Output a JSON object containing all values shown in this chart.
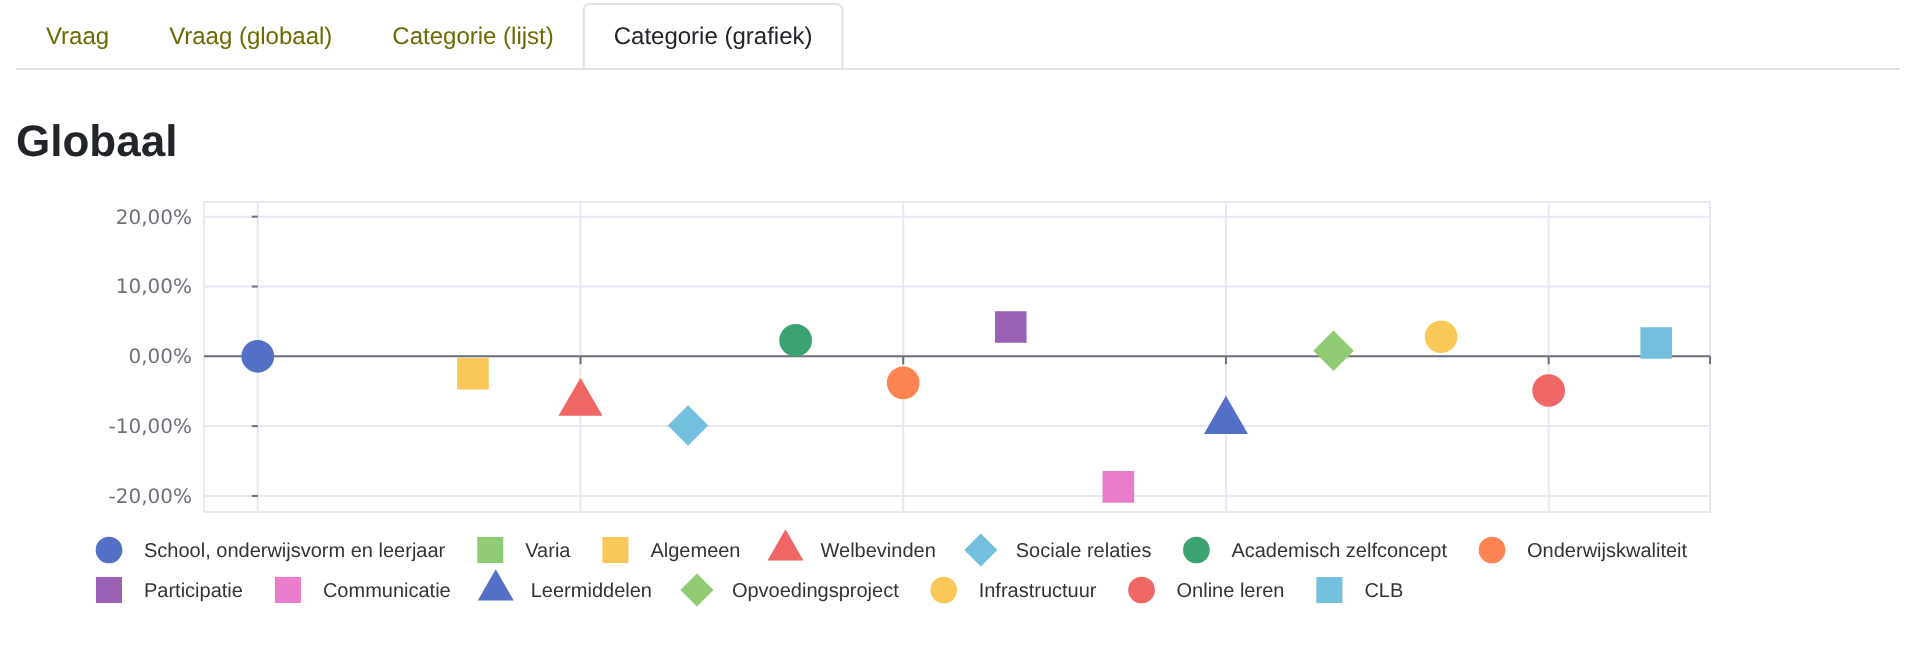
{
  "chart_data": {
    "type": "scatter",
    "title": "Globaal",
    "annotations": [
      "Vraag",
      "Vraag (globaal)",
      "Categorie (lijst)",
      "Categorie (grafiek)"
    ],
    "categories": [
      null,
      null,
      null,
      null,
      null,
      null,
      null,
      null,
      null,
      null,
      null,
      null,
      null,
      null
    ],
    "ylim": [
      -22.3,
      22.1
    ],
    "yticks": [
      {
        "value": -20,
        "label": "-20,00%"
      },
      {
        "value": -10,
        "label": "-10,00%"
      },
      {
        "value": 0,
        "label": "0,00%"
      },
      {
        "value": 10,
        "label": "10,00%"
      },
      {
        "value": 20,
        "label": "20,00%"
      }
    ],
    "grid": true,
    "legend": "bottom",
    "tick_labels": "y",
    "series": [
      {
        "name": "School, onderwijsvorm en leerjaar",
        "color": "#5470c6",
        "marker": "circle",
        "values": [
          0,
          null,
          null,
          null,
          null,
          null,
          null,
          null,
          null,
          null,
          null,
          null,
          null,
          null
        ]
      },
      {
        "name": "Varia",
        "color": "#91cc75",
        "marker": "square",
        "values": [
          null,
          null,
          null,
          null,
          null,
          null,
          null,
          null,
          null,
          null,
          null,
          null,
          null,
          null
        ]
      },
      {
        "name": "Algemeen",
        "color": "#fac858",
        "marker": "square",
        "values": [
          null,
          null,
          -2.5,
          null,
          null,
          null,
          null,
          null,
          null,
          null,
          null,
          null,
          null,
          null
        ]
      },
      {
        "name": "Welbevinden",
        "color": "#ee6666",
        "marker": "triangle",
        "values": [
          null,
          null,
          null,
          -6.7,
          null,
          null,
          null,
          null,
          null,
          null,
          null,
          null,
          null,
          null
        ]
      },
      {
        "name": "Sociale relaties",
        "color": "#73c0de",
        "marker": "diamond",
        "values": [
          null,
          null,
          null,
          null,
          -9.9,
          null,
          null,
          null,
          null,
          null,
          null,
          null,
          null,
          null
        ]
      },
      {
        "name": "Academisch zelfconcept",
        "color": "#3ba272",
        "marker": "circle",
        "values": [
          null,
          null,
          null,
          null,
          null,
          2.3,
          null,
          null,
          null,
          null,
          null,
          null,
          null,
          null
        ]
      },
      {
        "name": "Onderwijskwaliteit",
        "color": "#fc8452",
        "marker": "circle",
        "values": [
          null,
          null,
          null,
          null,
          null,
          null,
          -3.8,
          null,
          null,
          null,
          null,
          null,
          null,
          null
        ]
      },
      {
        "name": "Participatie",
        "color": "#9a60b4",
        "marker": "square",
        "values": [
          null,
          null,
          null,
          null,
          null,
          null,
          null,
          4.2,
          null,
          null,
          null,
          null,
          null,
          null
        ]
      },
      {
        "name": "Communicatie",
        "color": "#ea7ccc",
        "marker": "square",
        "values": [
          null,
          null,
          null,
          null,
          null,
          null,
          null,
          null,
          -18.7,
          null,
          null,
          null,
          null,
          null
        ]
      },
      {
        "name": "Leermiddelen",
        "color": "#5470c6",
        "marker": "triangle",
        "values": [
          null,
          null,
          null,
          null,
          null,
          null,
          null,
          null,
          null,
          -9.3,
          null,
          null,
          null,
          null
        ]
      },
      {
        "name": "Opvoedingsproject",
        "color": "#91cc75",
        "marker": "diamond",
        "values": [
          null,
          null,
          null,
          null,
          null,
          null,
          null,
          null,
          null,
          null,
          0.8,
          null,
          null,
          null
        ]
      },
      {
        "name": "Infrastructuur",
        "color": "#fac858",
        "marker": "circle",
        "values": [
          null,
          null,
          null,
          null,
          null,
          null,
          null,
          null,
          null,
          null,
          null,
          2.8,
          null,
          null
        ]
      },
      {
        "name": "Online leren",
        "color": "#ee6666",
        "marker": "circle",
        "values": [
          null,
          null,
          null,
          null,
          null,
          null,
          null,
          null,
          null,
          null,
          null,
          null,
          -4.9,
          null
        ]
      },
      {
        "name": "CLB",
        "color": "#73c0de",
        "marker": "square",
        "values": [
          null,
          null,
          null,
          null,
          null,
          null,
          null,
          null,
          null,
          null,
          null,
          null,
          null,
          1.9
        ]
      }
    ]
  }
}
